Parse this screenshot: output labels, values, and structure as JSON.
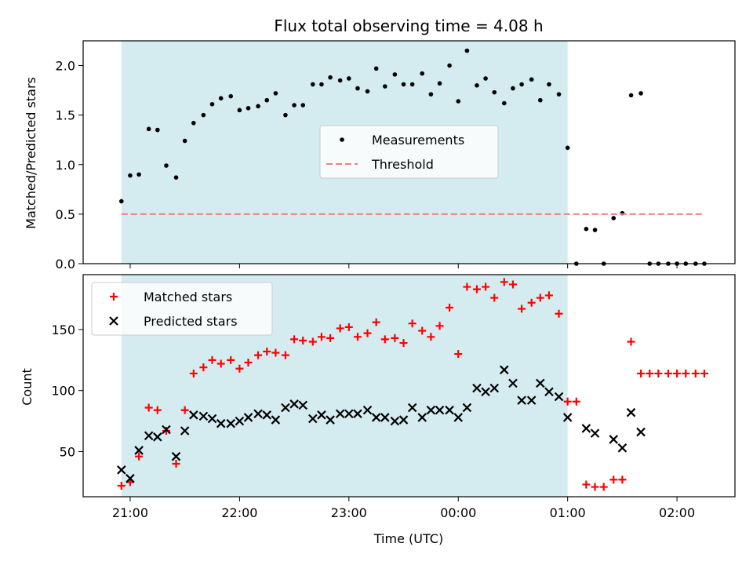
{
  "chart_data": {
    "type": "scatter",
    "title": "Flux total observing time = 4.08 h",
    "xlabel": "Time (UTC)",
    "x_ticks": [
      "21:00",
      "22:00",
      "23:00",
      "00:00",
      "01:00",
      "02:00"
    ],
    "x_range_hours": [
      20.57,
      26.53
    ],
    "observing_window": {
      "start_hour": 20.92,
      "end_hour": 25.0,
      "color": "#d4ebf0"
    },
    "panels": [
      {
        "ylabel": "Matched/Predicted stars",
        "ylim": [
          0,
          2.25
        ],
        "y_ticks": [
          "0.0",
          "0.5",
          "1.0",
          "1.5",
          "2.0"
        ],
        "legend_position": "center",
        "series": [
          {
            "name": "Measurements",
            "marker": "dot",
            "color": "#000000",
            "points": [
              [
                20.92,
                0.63
              ],
              [
                21.0,
                0.89
              ],
              [
                21.08,
                0.9
              ],
              [
                21.17,
                1.36
              ],
              [
                21.25,
                1.35
              ],
              [
                21.33,
                0.99
              ],
              [
                21.42,
                0.87
              ],
              [
                21.5,
                1.24
              ],
              [
                21.58,
                1.42
              ],
              [
                21.67,
                1.5
              ],
              [
                21.75,
                1.61
              ],
              [
                21.83,
                1.67
              ],
              [
                21.92,
                1.69
              ],
              [
                22.0,
                1.55
              ],
              [
                22.08,
                1.57
              ],
              [
                22.17,
                1.59
              ],
              [
                22.25,
                1.65
              ],
              [
                22.33,
                1.72
              ],
              [
                22.42,
                1.5
              ],
              [
                22.5,
                1.6
              ],
              [
                22.58,
                1.6
              ],
              [
                22.67,
                1.81
              ],
              [
                22.75,
                1.81
              ],
              [
                22.83,
                1.88
              ],
              [
                22.92,
                1.85
              ],
              [
                23.0,
                1.87
              ],
              [
                23.08,
                1.77
              ],
              [
                23.17,
                1.74
              ],
              [
                23.25,
                1.97
              ],
              [
                23.33,
                1.79
              ],
              [
                23.42,
                1.91
              ],
              [
                23.5,
                1.81
              ],
              [
                23.58,
                1.81
              ],
              [
                23.67,
                1.92
              ],
              [
                23.75,
                1.71
              ],
              [
                23.83,
                1.82
              ],
              [
                23.92,
                2.0
              ],
              [
                24.0,
                1.64
              ],
              [
                24.08,
                2.15
              ],
              [
                24.17,
                1.8
              ],
              [
                24.25,
                1.87
              ],
              [
                24.33,
                1.73
              ],
              [
                24.42,
                1.62
              ],
              [
                24.5,
                1.77
              ],
              [
                24.58,
                1.81
              ],
              [
                24.67,
                1.86
              ],
              [
                24.75,
                1.65
              ],
              [
                24.83,
                1.81
              ],
              [
                24.92,
                1.71
              ],
              [
                25.0,
                1.17
              ],
              [
                25.08,
                0.0
              ],
              [
                25.17,
                0.35
              ],
              [
                25.25,
                0.34
              ],
              [
                25.33,
                0.0
              ],
              [
                25.42,
                0.46
              ],
              [
                25.5,
                0.51
              ],
              [
                25.58,
                1.7
              ],
              [
                25.67,
                1.72
              ],
              [
                25.75,
                0.0
              ],
              [
                25.83,
                0.0
              ],
              [
                25.92,
                0.0
              ],
              [
                26.0,
                0.0
              ],
              [
                26.08,
                0.0
              ],
              [
                26.17,
                0.0
              ],
              [
                26.25,
                0.0
              ]
            ]
          },
          {
            "name": "Threshold",
            "style": "dashed",
            "color": "#f08080",
            "points": [
              [
                20.92,
                0.5
              ],
              [
                26.25,
                0.5
              ]
            ]
          }
        ]
      },
      {
        "ylabel": "Count",
        "ylim": [
          13,
          195
        ],
        "y_ticks": [
          "50",
          "100",
          "150"
        ],
        "legend_position": "upper left",
        "series": [
          {
            "name": "Matched stars",
            "marker": "plus",
            "color": "#ff0000",
            "points": [
              [
                20.92,
                22
              ],
              [
                21.0,
                25
              ],
              [
                21.08,
                46
              ],
              [
                21.17,
                86
              ],
              [
                21.25,
                84
              ],
              [
                21.33,
                67
              ],
              [
                21.42,
                40
              ],
              [
                21.5,
                84
              ],
              [
                21.58,
                114
              ],
              [
                21.67,
                119
              ],
              [
                21.75,
                125
              ],
              [
                21.83,
                122
              ],
              [
                21.92,
                125
              ],
              [
                22.0,
                118
              ],
              [
                22.08,
                123
              ],
              [
                22.17,
                129
              ],
              [
                22.25,
                132
              ],
              [
                22.33,
                131
              ],
              [
                22.42,
                129
              ],
              [
                22.5,
                142
              ],
              [
                22.58,
                141
              ],
              [
                22.67,
                140
              ],
              [
                22.75,
                144
              ],
              [
                22.83,
                143
              ],
              [
                22.92,
                151
              ],
              [
                23.0,
                152
              ],
              [
                23.08,
                144
              ],
              [
                23.17,
                147
              ],
              [
                23.25,
                156
              ],
              [
                23.33,
                142
              ],
              [
                23.42,
                143
              ],
              [
                23.5,
                139
              ],
              [
                23.58,
                155
              ],
              [
                23.67,
                149
              ],
              [
                23.75,
                144
              ],
              [
                23.83,
                153
              ],
              [
                23.92,
                168
              ],
              [
                24.0,
                130
              ],
              [
                24.08,
                185
              ],
              [
                24.17,
                183
              ],
              [
                24.25,
                185
              ],
              [
                24.33,
                176
              ],
              [
                24.42,
                189
              ],
              [
                24.5,
                187
              ],
              [
                24.58,
                167
              ],
              [
                24.67,
                172
              ],
              [
                24.75,
                176
              ],
              [
                24.83,
                178
              ],
              [
                24.92,
                163
              ],
              [
                25.0,
                91
              ],
              [
                25.08,
                91
              ],
              [
                25.17,
                23
              ],
              [
                25.25,
                21
              ],
              [
                25.33,
                21
              ],
              [
                25.42,
                27
              ],
              [
                25.5,
                27
              ],
              [
                25.58,
                140
              ],
              [
                25.67,
                114
              ],
              [
                25.75,
                114
              ],
              [
                25.83,
                114
              ],
              [
                25.92,
                114
              ],
              [
                26.0,
                114
              ],
              [
                26.08,
                114
              ],
              [
                26.17,
                114
              ],
              [
                26.25,
                114
              ]
            ]
          },
          {
            "name": "Predicted stars",
            "marker": "x",
            "color": "#000000",
            "points": [
              [
                20.92,
                35
              ],
              [
                21.0,
                28
              ],
              [
                21.08,
                51
              ],
              [
                21.17,
                63
              ],
              [
                21.25,
                62
              ],
              [
                21.33,
                68
              ],
              [
                21.42,
                46
              ],
              [
                21.5,
                67
              ],
              [
                21.58,
                80
              ],
              [
                21.67,
                79
              ],
              [
                21.75,
                77
              ],
              [
                21.83,
                73
              ],
              [
                21.92,
                73
              ],
              [
                22.0,
                75
              ],
              [
                22.08,
                78
              ],
              [
                22.17,
                81
              ],
              [
                22.25,
                80
              ],
              [
                22.33,
                76
              ],
              [
                22.42,
                86
              ],
              [
                22.5,
                89
              ],
              [
                22.58,
                88
              ],
              [
                22.67,
                77
              ],
              [
                22.75,
                80
              ],
              [
                22.83,
                76
              ],
              [
                22.92,
                81
              ],
              [
                23.0,
                81
              ],
              [
                23.08,
                81
              ],
              [
                23.17,
                84
              ],
              [
                23.25,
                78
              ],
              [
                23.33,
                78
              ],
              [
                23.42,
                75
              ],
              [
                23.5,
                76
              ],
              [
                23.58,
                86
              ],
              [
                23.67,
                78
              ],
              [
                23.75,
                84
              ],
              [
                23.83,
                84
              ],
              [
                23.92,
                84
              ],
              [
                24.0,
                78
              ],
              [
                24.08,
                86
              ],
              [
                24.17,
                102
              ],
              [
                24.25,
                99
              ],
              [
                24.33,
                102
              ],
              [
                24.42,
                117
              ],
              [
                24.5,
                106
              ],
              [
                24.58,
                92
              ],
              [
                24.67,
                92
              ],
              [
                24.75,
                106
              ],
              [
                24.83,
                99
              ],
              [
                24.92,
                95
              ],
              [
                25.0,
                78
              ],
              [
                25.17,
                69
              ],
              [
                25.25,
                65
              ],
              [
                25.42,
                60
              ],
              [
                25.5,
                53
              ],
              [
                25.58,
                82
              ],
              [
                25.67,
                66
              ]
            ]
          }
        ]
      }
    ]
  }
}
